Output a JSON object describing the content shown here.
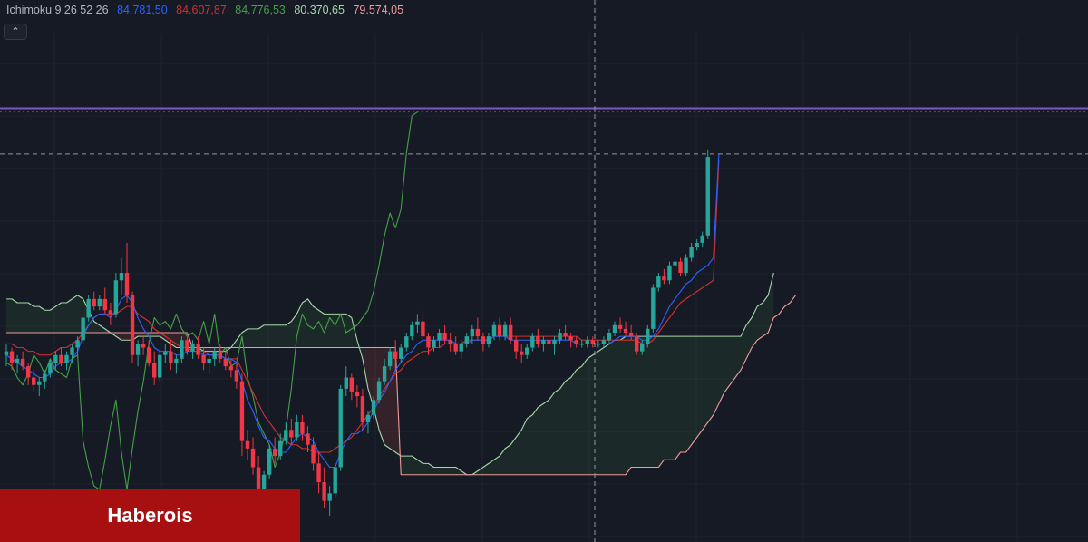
{
  "legend": {
    "indicator_name": "Ichimoku 9 26 52 26",
    "values": [
      {
        "text": "84.781,50",
        "color": "#2962ff"
      },
      {
        "text": "84.607,87",
        "color": "#d32f2f"
      },
      {
        "text": "84.776,53",
        "color": "#43a047"
      },
      {
        "text": "80.370,65",
        "color": "#a5d6a7"
      },
      {
        "text": "79.574,05",
        "color": "#ef9a9a"
      }
    ]
  },
  "collapse_icon": "chevron-up-icon",
  "watermark": {
    "text": "Haberois",
    "background": "#a80f10"
  },
  "colors": {
    "background": "#161a25",
    "up_candle": "#26a69a",
    "down_candle": "#f23645",
    "conversion_line": "#2962ff",
    "base_line": "#d32f2f",
    "lagging_span": "#43a047",
    "leading_span_a": "#a5d6a7",
    "leading_span_b": "#ef9a9a",
    "top_line": "#7e57c2"
  },
  "chart_data": {
    "type": "candlestick",
    "indicator": "Ichimoku 9 26 52 26",
    "candles": [
      [
        79400,
        79700,
        79100,
        79500
      ],
      [
        79500,
        79600,
        79000,
        79200
      ],
      [
        79200,
        79400,
        78900,
        79300
      ],
      [
        79300,
        79500,
        79000,
        79100
      ],
      [
        79100,
        79200,
        78600,
        78800
      ],
      [
        78800,
        79000,
        78400,
        78600
      ],
      [
        78600,
        78800,
        78300,
        78700
      ],
      [
        78700,
        79000,
        78500,
        78900
      ],
      [
        78900,
        79300,
        78800,
        79200
      ],
      [
        79200,
        79500,
        79000,
        79400
      ],
      [
        79400,
        79600,
        79100,
        79200
      ],
      [
        79200,
        79500,
        79000,
        79400
      ],
      [
        79400,
        79700,
        79200,
        79600
      ],
      [
        79600,
        79900,
        79400,
        79800
      ],
      [
        79800,
        80500,
        79700,
        80400
      ],
      [
        80400,
        81000,
        80300,
        80900
      ],
      [
        80900,
        81100,
        80600,
        80700
      ],
      [
        80700,
        81000,
        80600,
        80900
      ],
      [
        80900,
        81200,
        80500,
        80600
      ],
      [
        80600,
        80800,
        80200,
        80500
      ],
      [
        80500,
        81600,
        80400,
        81400
      ],
      [
        81400,
        82000,
        81000,
        81600
      ],
      [
        81600,
        82400,
        80800,
        81000
      ],
      [
        81000,
        81100,
        79200,
        79400
      ],
      [
        79400,
        79800,
        79100,
        79700
      ],
      [
        79700,
        79900,
        79400,
        79600
      ],
      [
        79600,
        79800,
        79100,
        79200
      ],
      [
        79200,
        79500,
        78600,
        78800
      ],
      [
        78800,
        79500,
        78700,
        79400
      ],
      [
        79400,
        79700,
        79200,
        79500
      ],
      [
        79500,
        79800,
        79000,
        79200
      ],
      [
        79200,
        79400,
        78900,
        79300
      ],
      [
        79300,
        79900,
        79200,
        79800
      ],
      [
        79800,
        80000,
        79400,
        79500
      ],
      [
        79500,
        79800,
        79300,
        79700
      ],
      [
        79700,
        79900,
        79300,
        79400
      ],
      [
        79400,
        79600,
        79000,
        79200
      ],
      [
        79200,
        79400,
        78900,
        79300
      ],
      [
        79300,
        79600,
        79100,
        79500
      ],
      [
        79500,
        79700,
        79200,
        79300
      ],
      [
        79300,
        79500,
        79000,
        79100
      ],
      [
        79100,
        79300,
        78800,
        79000
      ],
      [
        79000,
        79200,
        78500,
        78700
      ],
      [
        78700,
        78900,
        76700,
        77100
      ],
      [
        77100,
        77400,
        76600,
        76900
      ],
      [
        76900,
        77200,
        76200,
        76400
      ],
      [
        76400,
        76700,
        75300,
        75500
      ],
      [
        75500,
        76300,
        75400,
        76200
      ],
      [
        76200,
        77000,
        76100,
        76900
      ],
      [
        76900,
        77200,
        76500,
        76700
      ],
      [
        76700,
        77300,
        76600,
        77100
      ],
      [
        77100,
        77600,
        77000,
        77400
      ],
      [
        77400,
        77700,
        77000,
        77200
      ],
      [
        77200,
        77800,
        77100,
        77600
      ],
      [
        77600,
        77800,
        77100,
        77300
      ],
      [
        77300,
        77500,
        76800,
        77000
      ],
      [
        77000,
        77200,
        76300,
        76500
      ],
      [
        76500,
        76800,
        75700,
        76000
      ],
      [
        76000,
        76400,
        75300,
        75500
      ],
      [
        75500,
        75900,
        75100,
        75700
      ],
      [
        75700,
        76500,
        75600,
        76400
      ],
      [
        76400,
        78600,
        76300,
        78500
      ],
      [
        78500,
        79100,
        78300,
        78800
      ],
      [
        78800,
        78900,
        78200,
        78400
      ],
      [
        78400,
        78600,
        78000,
        78300
      ],
      [
        78300,
        78500,
        77400,
        77600
      ],
      [
        77600,
        77900,
        77300,
        77800
      ],
      [
        77800,
        78300,
        77700,
        78200
      ],
      [
        78200,
        78800,
        78100,
        78700
      ],
      [
        78700,
        79300,
        78600,
        79100
      ],
      [
        79100,
        79600,
        79000,
        79500
      ],
      [
        79500,
        79800,
        79000,
        79300
      ],
      [
        79300,
        79700,
        79200,
        79600
      ],
      [
        79600,
        80000,
        79500,
        79900
      ],
      [
        79900,
        80300,
        79800,
        80200
      ],
      [
        80200,
        80500,
        80000,
        80300
      ],
      [
        80300,
        80600,
        79800,
        79900
      ],
      [
        79900,
        80000,
        79400,
        79600
      ],
      [
        79600,
        79900,
        79500,
        79800
      ],
      [
        79800,
        80100,
        79600,
        80000
      ],
      [
        80000,
        80200,
        79700,
        79800
      ],
      [
        79800,
        80000,
        79500,
        79700
      ],
      [
        79700,
        79900,
        79400,
        79500
      ],
      [
        79500,
        79800,
        79300,
        79700
      ],
      [
        79700,
        80000,
        79600,
        79900
      ],
      [
        79900,
        80200,
        79700,
        80100
      ],
      [
        80100,
        80400,
        79800,
        79900
      ],
      [
        79900,
        80000,
        79500,
        79700
      ],
      [
        79700,
        80000,
        79600,
        79900
      ],
      [
        79900,
        80300,
        79800,
        80200
      ],
      [
        80200,
        80400,
        79800,
        79900
      ],
      [
        79900,
        80300,
        79800,
        80200
      ],
      [
        80200,
        80400,
        79700,
        79800
      ],
      [
        79800,
        79900,
        79300,
        79500
      ],
      [
        79500,
        79700,
        79200,
        79400
      ],
      [
        79400,
        79700,
        79300,
        79600
      ],
      [
        79600,
        80000,
        79500,
        79900
      ],
      [
        79900,
        80100,
        79600,
        79700
      ],
      [
        79700,
        79900,
        79500,
        79800
      ],
      [
        79800,
        80000,
        79600,
        79700
      ],
      [
        79700,
        79900,
        79400,
        79800
      ],
      [
        79800,
        80100,
        79700,
        80000
      ],
      [
        80000,
        80200,
        79800,
        79900
      ],
      [
        79900,
        80000,
        79600,
        79800
      ],
      [
        79800,
        79900,
        79600,
        79700
      ],
      [
        79700,
        79800,
        79600,
        79700
      ],
      [
        79700,
        79900,
        79600,
        79800
      ],
      [
        79800,
        79900,
        79600,
        79700
      ],
      [
        79700,
        79800,
        79600,
        79700
      ],
      [
        79700,
        79900,
        79600,
        79800
      ],
      [
        79800,
        80100,
        79700,
        80000
      ],
      [
        80000,
        80300,
        79900,
        80200
      ],
      [
        80200,
        80400,
        80000,
        80100
      ],
      [
        80100,
        80300,
        79900,
        80000
      ],
      [
        80000,
        80200,
        79800,
        79900
      ],
      [
        79900,
        80000,
        79400,
        79500
      ],
      [
        79500,
        79800,
        79400,
        79700
      ],
      [
        79700,
        80200,
        79600,
        80100
      ],
      [
        80100,
        81300,
        80000,
        81200
      ],
      [
        81200,
        81600,
        81100,
        81500
      ],
      [
        81500,
        81700,
        81300,
        81400
      ],
      [
        81400,
        81900,
        81300,
        81800
      ],
      [
        81800,
        82100,
        81700,
        81900
      ],
      [
        81900,
        82000,
        81500,
        81600
      ],
      [
        81600,
        82100,
        81500,
        82000
      ],
      [
        82000,
        82400,
        81900,
        82300
      ],
      [
        82300,
        82500,
        82200,
        82400
      ],
      [
        82400,
        82700,
        82300,
        82600
      ],
      [
        82600,
        84900,
        82500,
        84700
      ]
    ],
    "conversion_line": [
      79400,
      79300,
      79200,
      79100,
      79000,
      78900,
      78800,
      78800,
      78900,
      79100,
      79200,
      79200,
      79300,
      79500,
      79900,
      80200,
      80400,
      80500,
      80500,
      80400,
      80600,
      80900,
      81000,
      80800,
      80400,
      80100,
      79900,
      79600,
      79500,
      79500,
      79500,
      79400,
      79400,
      79500,
      79500,
      79500,
      79400,
      79400,
      79400,
      79400,
      79300,
      79300,
      79200,
      78700,
      78200,
      77900,
      77500,
      77200,
      77100,
      76900,
      76800,
      76800,
      77000,
      77200,
      77300,
      77200,
      77100,
      76800,
      76600,
      76400,
      76400,
      76800,
      77100,
      77300,
      77300,
      77400,
      77600,
      77900,
      78200,
      78400,
      78700,
      79000,
      79200,
      79400,
      79500,
      79700,
      79800,
      79800,
      79800,
      79800,
      79800,
      79800,
      79700,
      79700,
      79700,
      79800,
      79800,
      79800,
      79800,
      79900,
      79900,
      79900,
      79800,
      79800,
      79800,
      79800,
      79800,
      79800,
      79800,
      79800,
      79800,
      79800,
      79800,
      79800,
      79700,
      79700,
      79700,
      79700,
      79700,
      79700,
      79700,
      79800,
      79900,
      79900,
      79900,
      79900,
      79800,
      79800,
      79900,
      80100,
      80400,
      80700,
      80900,
      81100,
      81300,
      81400,
      81600,
      81700,
      81800,
      82000,
      84780
    ],
    "base_line": [
      79700,
      79700,
      79600,
      79600,
      79500,
      79500,
      79400,
      79400,
      79400,
      79500,
      79600,
      79600,
      79700,
      79800,
      80000,
      80200,
      80400,
      80500,
      80500,
      80500,
      80500,
      80600,
      80700,
      80700,
      80500,
      80400,
      80300,
      80100,
      80000,
      79900,
      79800,
      79700,
      79600,
      79600,
      79500,
      79500,
      79500,
      79400,
      79400,
      79400,
      79300,
      79300,
      79300,
      79000,
      78700,
      78400,
      78100,
      77800,
      77600,
      77400,
      77200,
      77100,
      77000,
      77000,
      76900,
      76900,
      76800,
      76800,
      76800,
      76800,
      76900,
      77000,
      77100,
      77200,
      77400,
      77600,
      77800,
      78000,
      78300,
      78500,
      78700,
      78900,
      79000,
      79200,
      79300,
      79400,
      79500,
      79500,
      79600,
      79600,
      79700,
      79700,
      79700,
      79700,
      79800,
      79800,
      79800,
      79800,
      79800,
      79900,
      79900,
      79900,
      79900,
      79900,
      79900,
      79900,
      79900,
      79900,
      79900,
      79900,
      79900,
      79900,
      79900,
      79900,
      79900,
      79800,
      79800,
      79800,
      79800,
      79800,
      79800,
      79800,
      79800,
      79800,
      79800,
      79800,
      79700,
      79700,
      79800,
      80000,
      80200,
      80400,
      80600,
      80800,
      80900,
      81000,
      81100,
      81200,
      81300,
      81400,
      84608
    ],
    "lagging_span": [
      79200,
      79100,
      78800,
      78600,
      78900,
      79400,
      79200,
      78900,
      79300,
      79000,
      78900,
      78800,
      79300,
      79400,
      77100,
      76400,
      75900,
      75800,
      76600,
      77500,
      78200,
      76800,
      75800,
      76900,
      77900,
      78700,
      79700,
      80400,
      80200,
      80300,
      80100,
      80500,
      80100,
      79900,
      80000,
      79800,
      80300,
      79700,
      80500,
      79400,
      79600,
      79100,
      79200,
      79900,
      78800,
      78300,
      77600,
      77300,
      77000,
      76400,
      76800,
      77400,
      78500,
      79900,
      80500,
      80200,
      80100,
      80300,
      80000,
      80400,
      80200,
      80500,
      80000,
      80100,
      80200,
      80400,
      80600,
      81100,
      81800,
      82600,
      83200,
      82800,
      83300,
      84800,
      85800,
      85900
    ],
    "leading_span_a": [
      80900,
      80900,
      80800,
      80800,
      80800,
      80700,
      80700,
      80600,
      80600,
      80700,
      80800,
      80800,
      80900,
      81000,
      80900,
      80600,
      80300,
      80200,
      80100,
      80000,
      79900,
      79800,
      79800,
      79800,
      79900,
      79900,
      79900,
      79900,
      79900,
      79800,
      79700,
      79600,
      79600,
      79600,
      79600,
      79600,
      79500,
      79500,
      79500,
      79500,
      79500,
      79600,
      79800,
      80000,
      80100,
      80100,
      80100,
      80200,
      80200,
      80200,
      80200,
      80200,
      80300,
      80500,
      80800,
      80900,
      80700,
      80600,
      80500,
      80500,
      80500,
      80500,
      80500,
      80400,
      79800,
      79300,
      78500,
      78000,
      77400,
      77000,
      76900,
      76800,
      76700,
      76700,
      76700,
      76600,
      76500,
      76500,
      76400,
      76400,
      76400,
      76400,
      76400,
      76300,
      76200,
      76200,
      76300,
      76400,
      76500,
      76600,
      76700,
      76900,
      77000,
      77200,
      77400,
      77700,
      77800,
      78000,
      78100,
      78200,
      78400,
      78500,
      78700,
      78800,
      79000,
      79100,
      79300,
      79400,
      79500,
      79600,
      79700,
      79800,
      79800,
      79900,
      79900,
      79900,
      79900,
      79900,
      79900,
      79900,
      79900,
      79900,
      79900,
      79900,
      79900,
      79900,
      79900,
      79900,
      79900,
      79900,
      79900,
      79900,
      79900,
      79900,
      79900,
      80200,
      80400,
      80700,
      80800,
      81000,
      81600
    ],
    "leading_span_b": [
      80000,
      80000,
      80000,
      80000,
      80000,
      80000,
      80000,
      80000,
      80000,
      80000,
      80000,
      80000,
      80000,
      80000,
      80000,
      80000,
      80000,
      80000,
      80000,
      80000,
      80000,
      80000,
      80000,
      80000,
      80000,
      80000,
      80000,
      80000,
      80000,
      80000,
      80000,
      80000,
      80000,
      80000,
      79600,
      79600,
      79600,
      79600,
      79600,
      79600,
      79600,
      79600,
      79600,
      79600,
      79600,
      79600,
      79600,
      79600,
      79600,
      79600,
      79600,
      79600,
      79600,
      79600,
      79600,
      79600,
      79600,
      79600,
      79600,
      79600,
      79600,
      79600,
      79600,
      79600,
      79600,
      79600,
      79600,
      79600,
      79600,
      79600,
      79600,
      79600,
      76200,
      76200,
      76200,
      76200,
      76200,
      76200,
      76200,
      76200,
      76200,
      76200,
      76200,
      76200,
      76200,
      76200,
      76200,
      76200,
      76200,
      76200,
      76200,
      76200,
      76200,
      76200,
      76200,
      76200,
      76200,
      76200,
      76200,
      76200,
      76200,
      76200,
      76200,
      76200,
      76200,
      76200,
      76200,
      76200,
      76200,
      76200,
      76200,
      76200,
      76200,
      76200,
      76400,
      76400,
      76400,
      76400,
      76400,
      76400,
      76600,
      76600,
      76600,
      76800,
      76800,
      77000,
      77200,
      77400,
      77600,
      77800,
      78100,
      78400,
      78600,
      78800,
      79000,
      79300,
      79600,
      79800,
      79900,
      80000,
      80400,
      80500,
      80700,
      80800,
      81000
    ],
    "price_line_value": 86000,
    "horizontal_marker_values": [
      84780,
      85900
    ]
  }
}
